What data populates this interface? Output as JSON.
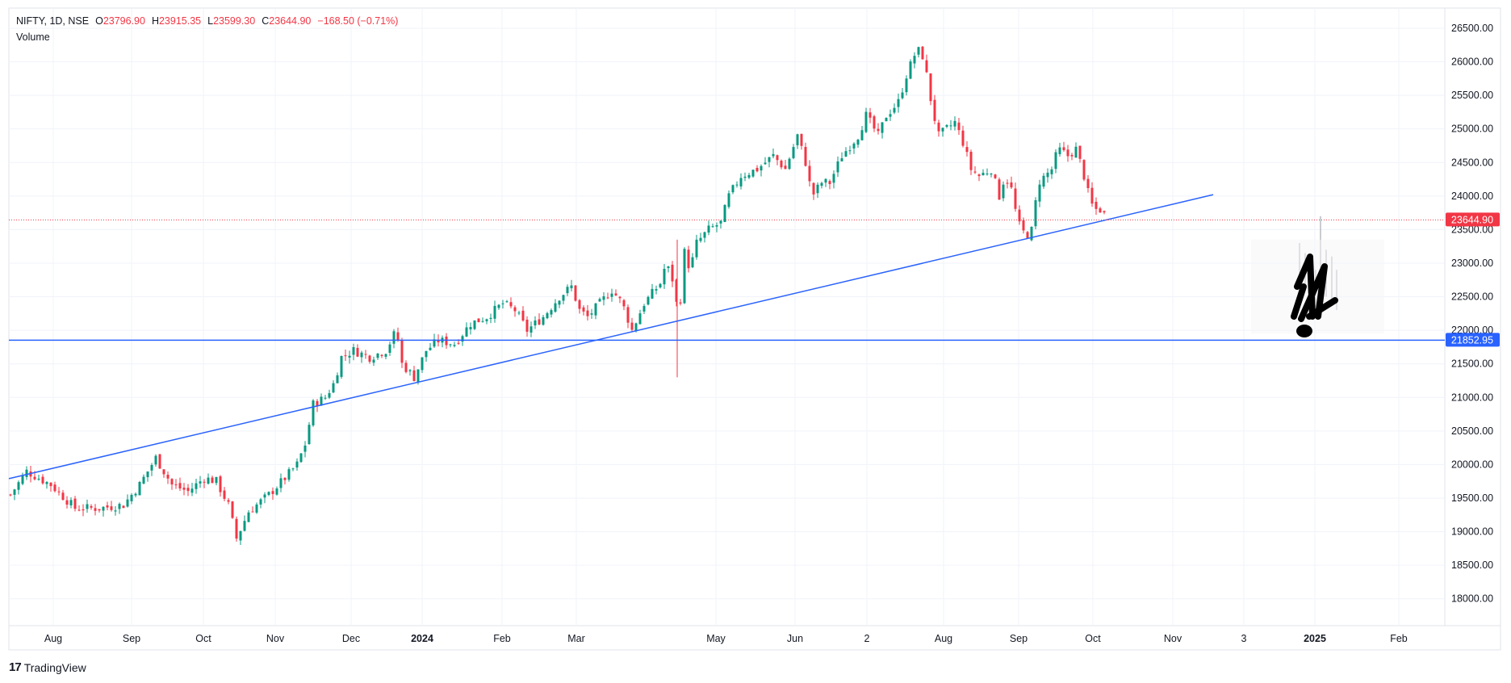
{
  "header": {
    "symbol": "NIFTY, 1D, NSE",
    "o_label": "O",
    "o_value": "23796.90",
    "h_label": "H",
    "h_value": "23915.35",
    "l_label": "L",
    "l_value": "23599.30",
    "c_label": "C",
    "c_value": "23644.90",
    "change": "−168.50 (−0.71%)",
    "volume_label": "Volume"
  },
  "brand": {
    "logo": "17",
    "name": "TradingView"
  },
  "chart_data": {
    "type": "candlestick",
    "y_ticks": [
      "26500.00",
      "26000.00",
      "25500.00",
      "25000.00",
      "24500.00",
      "24000.00",
      "23500.00",
      "23000.00",
      "22500.00",
      "22000.00",
      "21500.00",
      "21000.00",
      "20500.00",
      "20000.00",
      "19500.00",
      "19000.00",
      "18500.00",
      "18000.00"
    ],
    "ylim": [
      17600,
      26800
    ],
    "x_ticks": [
      {
        "label": "Aug",
        "bold": false
      },
      {
        "label": "Sep",
        "bold": false
      },
      {
        "label": "Oct",
        "bold": false
      },
      {
        "label": "Nov",
        "bold": false
      },
      {
        "label": "Dec",
        "bold": false
      },
      {
        "label": "2024",
        "bold": true
      },
      {
        "label": "Feb",
        "bold": false
      },
      {
        "label": "Mar",
        "bold": false
      },
      {
        "label": "May",
        "bold": false
      },
      {
        "label": "Jun",
        "bold": false
      },
      {
        "label": "2",
        "bold": false
      },
      {
        "label": "Aug",
        "bold": false
      },
      {
        "label": "Sep",
        "bold": false
      },
      {
        "label": "Oct",
        "bold": false
      },
      {
        "label": "Nov",
        "bold": false
      },
      {
        "label": "3",
        "bold": false
      },
      {
        "label": "2025",
        "bold": true
      },
      {
        "label": "Feb",
        "bold": false
      }
    ],
    "price_path": [
      [
        0,
        19550
      ],
      [
        20,
        19900
      ],
      [
        50,
        19700
      ],
      [
        80,
        19350
      ],
      [
        110,
        19350
      ],
      [
        140,
        19400
      ],
      [
        160,
        19700
      ],
      [
        180,
        20100
      ],
      [
        200,
        19700
      ],
      [
        220,
        19600
      ],
      [
        240,
        19800
      ],
      [
        255,
        19750
      ],
      [
        270,
        19400
      ],
      [
        280,
        18900
      ],
      [
        295,
        19300
      ],
      [
        320,
        19550
      ],
      [
        340,
        19800
      ],
      [
        355,
        20000
      ],
      [
        365,
        20300
      ],
      [
        375,
        20900
      ],
      [
        390,
        21000
      ],
      [
        400,
        21200
      ],
      [
        410,
        21600
      ],
      [
        425,
        21700
      ],
      [
        445,
        21600
      ],
      [
        465,
        21700
      ],
      [
        478,
        22000
      ],
      [
        485,
        21500
      ],
      [
        500,
        21300
      ],
      [
        515,
        21700
      ],
      [
        530,
        21850
      ],
      [
        550,
        21800
      ],
      [
        570,
        22100
      ],
      [
        590,
        22200
      ],
      [
        610,
        22400
      ],
      [
        625,
        22300
      ],
      [
        640,
        22000
      ],
      [
        660,
        22200
      ],
      [
        680,
        22500
      ],
      [
        695,
        22650
      ],
      [
        705,
        22300
      ],
      [
        715,
        22200
      ],
      [
        730,
        22400
      ],
      [
        745,
        22600
      ],
      [
        758,
        22400
      ],
      [
        770,
        22000
      ],
      [
        785,
        22400
      ],
      [
        805,
        22700
      ],
      [
        812,
        23000
      ],
      [
        822,
        22700
      ],
      [
        828,
        22100
      ],
      [
        834,
        23200
      ],
      [
        842,
        22900
      ],
      [
        850,
        23300
      ],
      [
        865,
        23500
      ],
      [
        880,
        23600
      ],
      [
        890,
        24000
      ],
      [
        905,
        24300
      ],
      [
        925,
        24400
      ],
      [
        945,
        24600
      ],
      [
        960,
        24400
      ],
      [
        975,
        24900
      ],
      [
        985,
        24500
      ],
      [
        993,
        24000
      ],
      [
        1005,
        24200
      ],
      [
        1015,
        24200
      ],
      [
        1030,
        24600
      ],
      [
        1050,
        24900
      ],
      [
        1060,
        25200
      ],
      [
        1075,
        24900
      ],
      [
        1085,
        25200
      ],
      [
        1100,
        25400
      ],
      [
        1110,
        25800
      ],
      [
        1120,
        26100
      ],
      [
        1128,
        26200
      ],
      [
        1135,
        25800
      ],
      [
        1142,
        25300
      ],
      [
        1150,
        24900
      ],
      [
        1160,
        25000
      ],
      [
        1170,
        25100
      ],
      [
        1180,
        24800
      ],
      [
        1190,
        24400
      ],
      [
        1200,
        24300
      ],
      [
        1215,
        24400
      ],
      [
        1225,
        24000
      ],
      [
        1232,
        24300
      ],
      [
        1240,
        24100
      ],
      [
        1248,
        23600
      ],
      [
        1258,
        23400
      ],
      [
        1266,
        23500
      ],
      [
        1273,
        24200
      ],
      [
        1282,
        24300
      ],
      [
        1290,
        24400
      ],
      [
        1298,
        24700
      ],
      [
        1310,
        24600
      ],
      [
        1320,
        24700
      ],
      [
        1328,
        24400
      ],
      [
        1336,
        24000
      ],
      [
        1342,
        23800
      ],
      [
        1350,
        23800
      ],
      [
        1357,
        23700
      ]
    ],
    "horizontal_line": {
      "value": 21852.95,
      "label": "21852.95",
      "color": "#2962ff"
    },
    "last_price": {
      "value": 23644.9,
      "label": "23644.90",
      "color": "#f23645"
    },
    "trendline": {
      "from": [
        0,
        19790
      ],
      "to": [
        1492,
        24020
      ],
      "color": "#2962ff"
    },
    "colors": {
      "up": "#089981",
      "down": "#f23645",
      "grid": "#f0f3fa",
      "axis_text": "#131722"
    }
  }
}
